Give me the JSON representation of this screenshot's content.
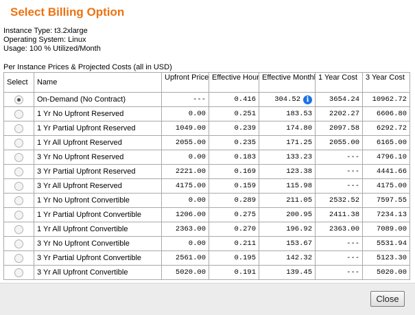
{
  "dialog": {
    "title": "Select Billing Option",
    "close_label": "Close"
  },
  "instance": {
    "type_line": "Instance Type: t3.2xlarge",
    "os_line": "Operating System: Linux",
    "usage_line": "Usage: 100 % Utilized/Month"
  },
  "table": {
    "caption": "Per Instance Prices & Projected Costs (all in USD)",
    "headers": {
      "select": "Select",
      "name": "Name",
      "upfront": "Upfront Price",
      "hourly": "Effective Hourly Cost",
      "monthly": "Effective Monthly Cost",
      "one_year": "1 Year Cost",
      "three_year": "3 Year Cost"
    },
    "rows": [
      {
        "name": "On-Demand (No Contract)",
        "upfront": "---",
        "hourly": "0.416",
        "monthly": "304.52",
        "one_year": "3654.24",
        "three_year": "10962.72",
        "selected": true
      },
      {
        "name": "1 Yr No Upfront Reserved",
        "upfront": "0.00",
        "hourly": "0.251",
        "monthly": "183.53",
        "one_year": "2202.27",
        "three_year": "6606.80",
        "selected": false
      },
      {
        "name": "1 Yr Partial Upfront Reserved",
        "upfront": "1049.00",
        "hourly": "0.239",
        "monthly": "174.80",
        "one_year": "2097.58",
        "three_year": "6292.72",
        "selected": false
      },
      {
        "name": "1 Yr All Upfront Reserved",
        "upfront": "2055.00",
        "hourly": "0.235",
        "monthly": "171.25",
        "one_year": "2055.00",
        "three_year": "6165.00",
        "selected": false
      },
      {
        "name": "3 Yr No Upfront Reserved",
        "upfront": "0.00",
        "hourly": "0.183",
        "monthly": "133.23",
        "one_year": "---",
        "three_year": "4796.10",
        "selected": false
      },
      {
        "name": "3 Yr Partial Upfront Reserved",
        "upfront": "2221.00",
        "hourly": "0.169",
        "monthly": "123.38",
        "one_year": "---",
        "three_year": "4441.66",
        "selected": false
      },
      {
        "name": "3 Yr All Upfront Reserved",
        "upfront": "4175.00",
        "hourly": "0.159",
        "monthly": "115.98",
        "one_year": "---",
        "three_year": "4175.00",
        "selected": false
      },
      {
        "name": "1 Yr No Upfront Convertible",
        "upfront": "0.00",
        "hourly": "0.289",
        "monthly": "211.05",
        "one_year": "2532.52",
        "three_year": "7597.55",
        "selected": false
      },
      {
        "name": "1 Yr Partial Upfront Convertible",
        "upfront": "1206.00",
        "hourly": "0.275",
        "monthly": "200.95",
        "one_year": "2411.38",
        "three_year": "7234.13",
        "selected": false
      },
      {
        "name": "1 Yr All Upfront Convertible",
        "upfront": "2363.00",
        "hourly": "0.270",
        "monthly": "196.92",
        "one_year": "2363.00",
        "three_year": "7089.00",
        "selected": false
      },
      {
        "name": "3 Yr No Upfront Convertible",
        "upfront": "0.00",
        "hourly": "0.211",
        "monthly": "153.67",
        "one_year": "---",
        "three_year": "5531.94",
        "selected": false
      },
      {
        "name": "3 Yr Partial Upfront Convertible",
        "upfront": "2561.00",
        "hourly": "0.195",
        "monthly": "142.32",
        "one_year": "---",
        "three_year": "5123.30",
        "selected": false
      },
      {
        "name": "3 Yr All Upfront Convertible",
        "upfront": "5020.00",
        "hourly": "0.191",
        "monthly": "139.45",
        "one_year": "---",
        "three_year": "5020.00",
        "selected": false
      }
    ],
    "info_icon": {
      "name": "info-icon",
      "glyph": "i",
      "color": "#1a73e8"
    }
  },
  "colors": {
    "title": "#ec7211",
    "footer_bg": "#ececec"
  }
}
